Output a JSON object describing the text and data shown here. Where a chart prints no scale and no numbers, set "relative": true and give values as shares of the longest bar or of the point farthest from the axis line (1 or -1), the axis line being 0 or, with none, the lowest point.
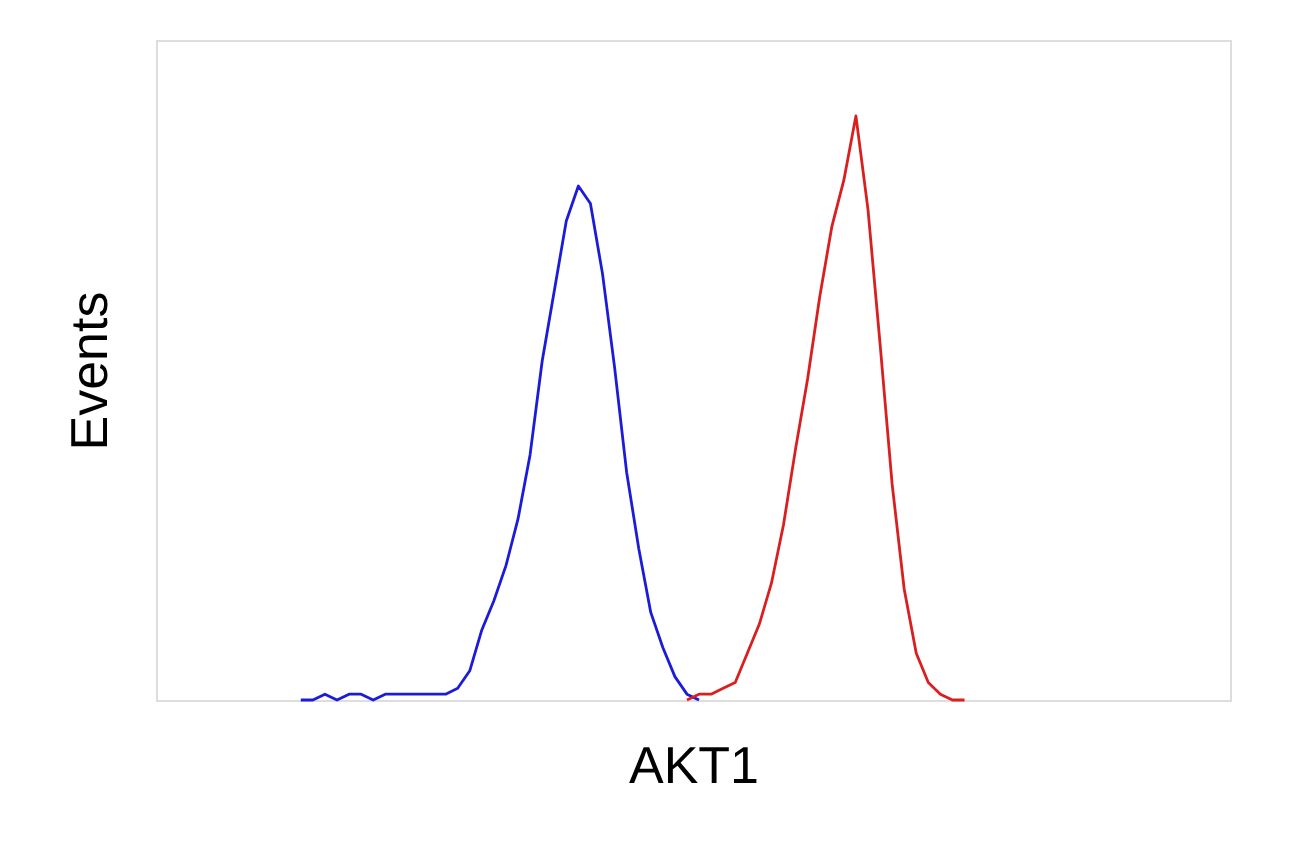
{
  "chart_data": {
    "type": "line",
    "relative": true,
    "xlabel": "AKT1",
    "ylabel": "Events",
    "grid": false,
    "legend": false,
    "categories": [
      null,
      null,
      null,
      null,
      null,
      null,
      null,
      null,
      null,
      null,
      null,
      null,
      null,
      null,
      null,
      null,
      null,
      null,
      null,
      null,
      null,
      null,
      null,
      null,
      null,
      null,
      null,
      null,
      null,
      null,
      null,
      null,
      null,
      null,
      null,
      null,
      null,
      null,
      null,
      null,
      null,
      null,
      null,
      null,
      null,
      null,
      null,
      null,
      null,
      null,
      null,
      null,
      null,
      null,
      null,
      null,
      null,
      null,
      null,
      null,
      null,
      null,
      null,
      null,
      null,
      null,
      null,
      null,
      null,
      null,
      null,
      null,
      null,
      null,
      null,
      null,
      null,
      null,
      null,
      null,
      null,
      null,
      null,
      null,
      null,
      null,
      null,
      null,
      null,
      null
    ],
    "series": [
      {
        "color": "#1c1cd8",
        "values": [
          null,
          null,
          null,
          null,
          null,
          null,
          null,
          null,
          null,
          null,
          null,
          null,
          0,
          0,
          0.01,
          0,
          0.01,
          0.01,
          0,
          0.01,
          0.01,
          0.01,
          0.01,
          0.01,
          0.01,
          0.02,
          0.05,
          0.12,
          0.17,
          0.23,
          0.31,
          0.42,
          0.58,
          0.7,
          0.82,
          0.88,
          0.85,
          0.73,
          0.57,
          0.39,
          0.26,
          0.15,
          0.09,
          0.04,
          0.01,
          0,
          null,
          null,
          null,
          null,
          null,
          null,
          null,
          null,
          null,
          null,
          null,
          null,
          null,
          null,
          null,
          null,
          null,
          null,
          null,
          null,
          null,
          null,
          null,
          null,
          null,
          null,
          null,
          null,
          null,
          null,
          null,
          null,
          null,
          null,
          null,
          null,
          null,
          null,
          null,
          null,
          null,
          null,
          null,
          null
        ]
      },
      {
        "color": "#d82020",
        "values": [
          null,
          null,
          null,
          null,
          null,
          null,
          null,
          null,
          null,
          null,
          null,
          null,
          null,
          null,
          null,
          null,
          null,
          null,
          null,
          null,
          null,
          null,
          null,
          null,
          null,
          null,
          null,
          null,
          null,
          null,
          null,
          null,
          null,
          null,
          null,
          null,
          null,
          null,
          null,
          null,
          null,
          null,
          null,
          null,
          0,
          0.01,
          0.01,
          0.02,
          0.03,
          0.08,
          0.13,
          0.2,
          0.3,
          0.43,
          0.55,
          0.69,
          0.81,
          0.89,
          1.0,
          0.84,
          0.61,
          0.37,
          0.19,
          0.08,
          0.03,
          0.01,
          0,
          0,
          null,
          null,
          null,
          null,
          null,
          null,
          null,
          null,
          null,
          null,
          null,
          null,
          null,
          null,
          null,
          null,
          null,
          null,
          null,
          null,
          null,
          null
        ]
      }
    ]
  }
}
